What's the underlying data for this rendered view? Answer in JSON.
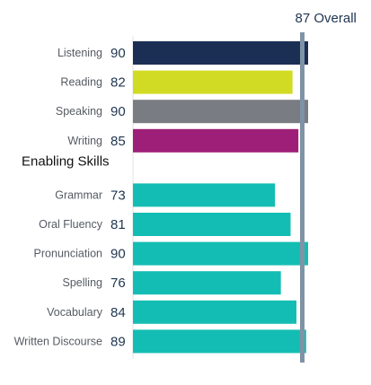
{
  "chart_data": {
    "type": "bar",
    "orientation": "horizontal",
    "xlim": [
      0,
      90
    ],
    "overall": {
      "value": 87,
      "label": "Overall",
      "color": "#7f93a6"
    },
    "groups": [
      {
        "title": "",
        "items": [
          {
            "label": "Listening",
            "value": 90,
            "color": "#1b2f54"
          },
          {
            "label": "Reading",
            "value": 82,
            "color": "#d1db24"
          },
          {
            "label": "Speaking",
            "value": 90,
            "color": "#797c82"
          },
          {
            "label": "Writing",
            "value": 85,
            "color": "#9e1f78"
          }
        ]
      },
      {
        "title": "Enabling Skills",
        "items": [
          {
            "label": "Grammar",
            "value": 73,
            "color": "#14bdb3"
          },
          {
            "label": "Oral Fluency",
            "value": 81,
            "color": "#14bdb3"
          },
          {
            "label": "Pronunciation",
            "value": 90,
            "color": "#14bdb3"
          },
          {
            "label": "Spelling",
            "value": 76,
            "color": "#14bdb3"
          },
          {
            "label": "Vocabulary",
            "value": 84,
            "color": "#14bdb3"
          },
          {
            "label": "Written Discourse",
            "value": 89,
            "color": "#14bdb3"
          }
        ]
      }
    ]
  }
}
